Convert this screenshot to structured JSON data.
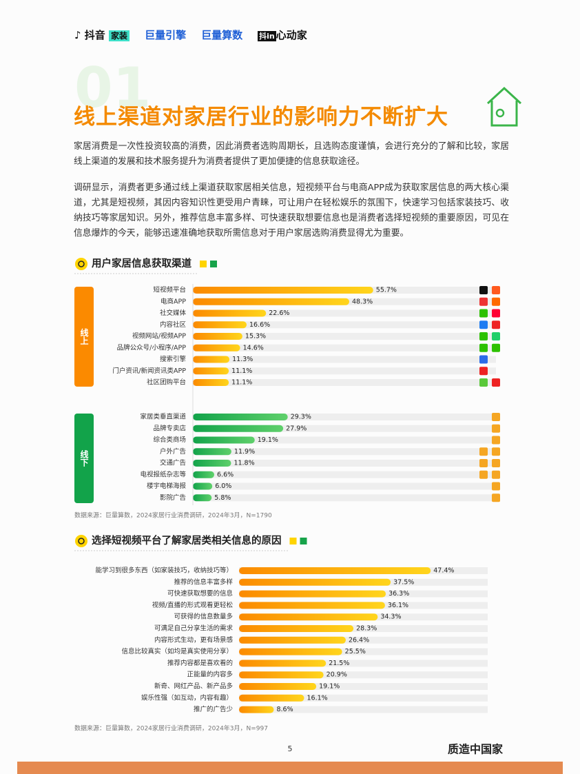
{
  "header": {
    "logos": [
      "抖音",
      "家装",
      "巨量引擎",
      "巨量算数",
      "抖in",
      "心动家"
    ]
  },
  "section_number": "01",
  "title": "线上渠道对家居行业的影响力不断扩大",
  "paragraphs": [
    "家居消费是一次性投资较高的消费，因此消费者选购周期长，且选购态度谨慎，会进行充分的了解和比较，家居线上渠道的发展和技术服务提升为消费者提供了更加便捷的信息获取途径。",
    "调研显示，消费者更多通过线上渠道获取家居相关信息，短视频平台与电商APP成为获取家居信息的两大核心渠道，尤其是短视频，其因内容知识性更受用户青睐，可让用户在轻松娱乐的氛围下，快速学习包括家装技巧、收纳技巧等家居知识。另外，推荐信息丰富多样、可快速获取想要信息也是消费者选择短视频的重要原因，可见在信息爆炸的今天，能够迅速准确地获取所需信息对于用户家居选购消费显得尤为重要。"
  ],
  "chart1": {
    "type": "bar",
    "title": "用户家居信息获取渠道",
    "groups": [
      {
        "name": "线上",
        "colors": [
          "#fb8a00",
          "#ffd51c"
        ],
        "categories": [
          "短视频平台",
          "电商APP",
          "社交媒体",
          "内容社区",
          "视频网站/视频APP",
          "品牌公众号/小程序/APP",
          "搜索引擎",
          "门户资讯/新闻资讯类APP",
          "社区团购平台"
        ],
        "values": [
          55.7,
          48.3,
          22.6,
          16.6,
          15.3,
          14.6,
          11.3,
          11.1,
          11.1
        ],
        "value_labels": [
          "55.7%",
          "48.3%",
          "22.6%",
          "16.6%",
          "15.3%",
          "14.6%",
          "11.3%",
          "11.1%",
          "11.1%"
        ]
      },
      {
        "name": "线下",
        "colors": [
          "#12a34a",
          "#5fd06b"
        ],
        "categories": [
          "家居类垂直渠道",
          "品牌专卖店",
          "综合类商场",
          "户外广告",
          "交通广告",
          "电视报纸杂志等",
          "楼宇电梯海报",
          "影院广告"
        ],
        "values": [
          29.3,
          27.9,
          19.1,
          11.9,
          11.8,
          6.6,
          6.0,
          5.8
        ],
        "value_labels": [
          "29.3%",
          "27.9%",
          "19.1%",
          "11.9%",
          "11.8%",
          "6.6%",
          "6.0%",
          "5.8%"
        ]
      }
    ],
    "source": "数据来源：巨量算数，2024家居行业消费调研，2024年3月，N=1790"
  },
  "chart2": {
    "type": "bar",
    "title": "选择短视频平台了解家居类相关信息的原因",
    "colors": [
      "#fb8a00",
      "#ffd51c"
    ],
    "categories": [
      "能学习到很多东西（如家装技巧，收纳技巧等）",
      "推荐的信息丰富多样",
      "可快速获取想要的信息",
      "视频/直播的形式观看更轻松",
      "可获得的信息数量多",
      "可满足自己分享生活的需求",
      "内容形式生动，更有场景感",
      "信息比较真实（如均是真实使用分享）",
      "推荐内容都是喜欢看的",
      "正能量的内容多",
      "新奇、网红产品、新产品多",
      "娱乐性强（如互动，内容有趣）",
      "推广的广告少"
    ],
    "values": [
      47.4,
      37.5,
      36.3,
      36.1,
      34.3,
      28.3,
      26.4,
      25.5,
      21.5,
      20.9,
      19.1,
      16.1,
      8.6
    ],
    "value_labels": [
      "47.4%",
      "37.5%",
      "36.3%",
      "36.1%",
      "34.3%",
      "28.3%",
      "26.4%",
      "25.5%",
      "21.5%",
      "20.9%",
      "19.1%",
      "16.1%",
      "8.6%"
    ],
    "source": "数据来源：巨量算数，2024家居行业消费调研，2024年3月，N=997"
  },
  "page_number": "5",
  "footer": {
    "brand": "质造中国家"
  }
}
